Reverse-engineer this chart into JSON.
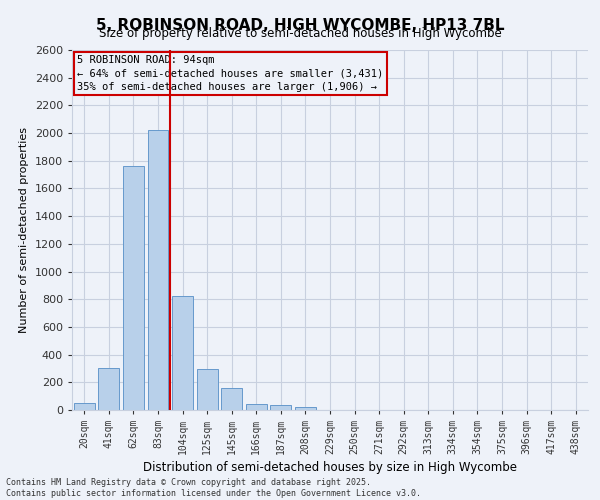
{
  "title": "5, ROBINSON ROAD, HIGH WYCOMBE, HP13 7BL",
  "subtitle": "Size of property relative to semi-detached houses in High Wycombe",
  "xlabel": "Distribution of semi-detached houses by size in High Wycombe",
  "ylabel": "Number of semi-detached properties",
  "categories": [
    "20sqm",
    "41sqm",
    "62sqm",
    "83sqm",
    "104sqm",
    "125sqm",
    "145sqm",
    "166sqm",
    "187sqm",
    "208sqm",
    "229sqm",
    "250sqm",
    "271sqm",
    "292sqm",
    "313sqm",
    "334sqm",
    "354sqm",
    "375sqm",
    "396sqm",
    "417sqm",
    "438sqm"
  ],
  "values": [
    50,
    300,
    1760,
    2020,
    820,
    295,
    160,
    40,
    35,
    20,
    0,
    0,
    0,
    0,
    0,
    0,
    0,
    0,
    0,
    0,
    0
  ],
  "bar_color": "#b8d0ea",
  "bar_edge_color": "#6699cc",
  "vline_color": "#cc0000",
  "vline_pos": 3.5,
  "annotation_text": "5 ROBINSON ROAD: 94sqm\n← 64% of semi-detached houses are smaller (3,431)\n35% of semi-detached houses are larger (1,906) →",
  "annotation_box_color": "#cc0000",
  "ylim": [
    0,
    2600
  ],
  "yticks": [
    0,
    200,
    400,
    600,
    800,
    1000,
    1200,
    1400,
    1600,
    1800,
    2000,
    2200,
    2400,
    2600
  ],
  "footer": "Contains HM Land Registry data © Crown copyright and database right 2025.\nContains public sector information licensed under the Open Government Licence v3.0.",
  "bg_color": "#eef2f9",
  "grid_color": "#c8d0df"
}
